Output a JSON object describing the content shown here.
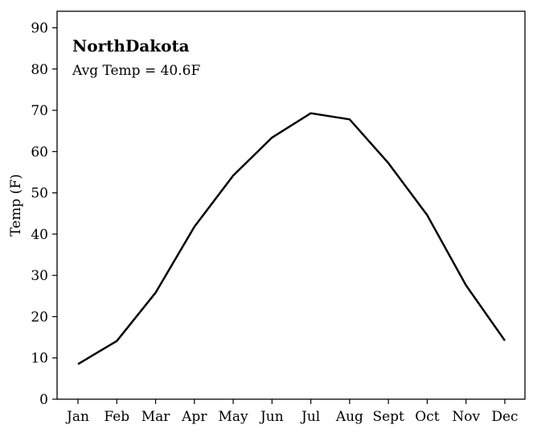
{
  "chart_data": {
    "type": "line",
    "title": "NorthDakota",
    "subtitle": "Avg Temp = 40.6F",
    "xlabel": "",
    "ylabel": "Temp (F)",
    "categories": [
      "Jan",
      "Feb",
      "Mar",
      "Apr",
      "May",
      "Jun",
      "Jul",
      "Aug",
      "Sept",
      "Oct",
      "Nov",
      "Dec"
    ],
    "series": [
      {
        "values": [
          8.5,
          14.1,
          25.8,
          41.8,
          54.2,
          63.4,
          69.3,
          67.8,
          57.2,
          44.6,
          27.6,
          14.2
        ]
      }
    ],
    "ylim": [
      0,
      94
    ],
    "yticks": [
      0,
      10,
      20,
      30,
      40,
      50,
      60,
      70,
      80,
      90
    ],
    "grid": false,
    "line_color": "#000000"
  }
}
